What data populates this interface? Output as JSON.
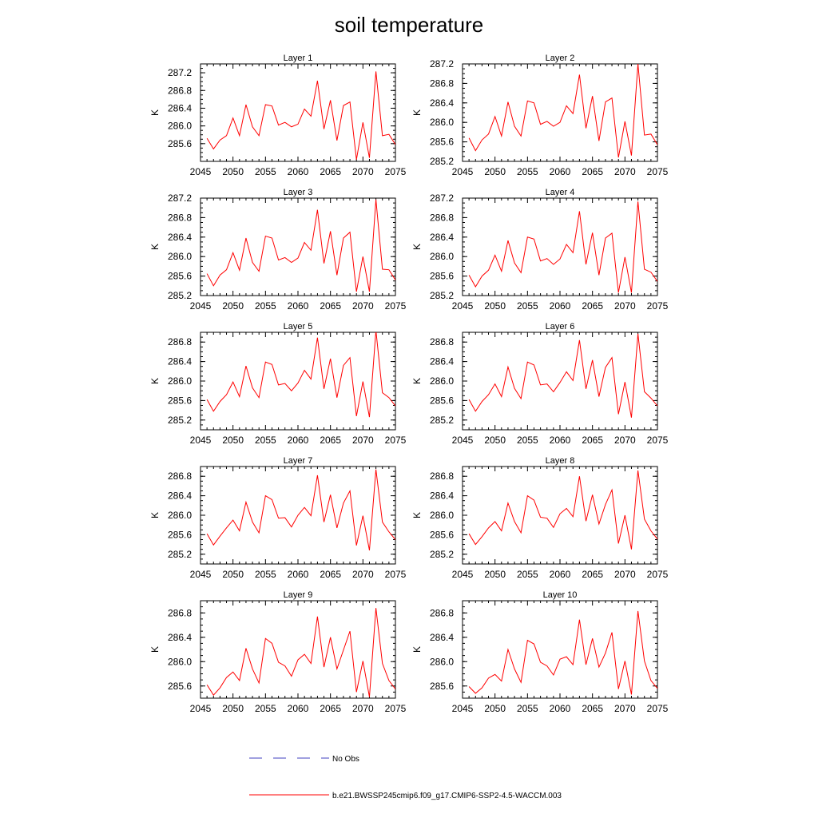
{
  "figure": {
    "title": "soil temperature",
    "legend": {
      "obs_label": "No Obs",
      "model_label": "b.e21.BWSSP245cmip6.f09_g17.CMIP6-SSP2-4.5-WACCM.003"
    }
  },
  "colors": {
    "model": "#ff0000",
    "obs": "#4040c0",
    "axis": "#000000",
    "background": "#ffffff"
  },
  "chart_data": [
    {
      "type": "line",
      "title": "Layer 1",
      "ylabel": "K",
      "xlim": [
        2045,
        2075
      ],
      "ylim": [
        285.2,
        287.4
      ],
      "xticks": [
        2045,
        2050,
        2055,
        2060,
        2065,
        2070,
        2075
      ],
      "yticks": [
        285.6,
        286.0,
        286.4,
        286.8,
        287.2
      ],
      "x": [
        2046,
        2047,
        2048,
        2049,
        2050,
        2051,
        2052,
        2053,
        2054,
        2055,
        2056,
        2057,
        2058,
        2059,
        2060,
        2061,
        2062,
        2063,
        2064,
        2065,
        2066,
        2067,
        2068,
        2069,
        2070,
        2071,
        2072,
        2073,
        2074,
        2075
      ],
      "series": [
        {
          "values": [
            285.72,
            285.48,
            285.68,
            285.78,
            286.18,
            285.78,
            286.48,
            285.98,
            285.78,
            286.48,
            286.45,
            286.02,
            286.08,
            285.98,
            286.04,
            286.38,
            286.22,
            287.02,
            285.93,
            286.58,
            285.67,
            286.46,
            286.54,
            285.24,
            286.08,
            285.28,
            287.23,
            285.78,
            285.81,
            285.58
          ]
        }
      ]
    },
    {
      "type": "line",
      "title": "Layer 2",
      "ylabel": "K",
      "xlim": [
        2045,
        2075
      ],
      "ylim": [
        285.2,
        287.2
      ],
      "xticks": [
        2045,
        2050,
        2055,
        2060,
        2065,
        2070,
        2075
      ],
      "yticks": [
        285.2,
        285.6,
        286.0,
        286.4,
        286.8,
        287.2
      ],
      "x": [
        2046,
        2047,
        2048,
        2049,
        2050,
        2051,
        2052,
        2053,
        2054,
        2055,
        2056,
        2057,
        2058,
        2059,
        2060,
        2061,
        2062,
        2063,
        2064,
        2065,
        2066,
        2067,
        2068,
        2069,
        2070,
        2071,
        2072,
        2073,
        2074,
        2075
      ],
      "series": [
        {
          "values": [
            285.68,
            285.42,
            285.64,
            285.76,
            286.12,
            285.72,
            286.42,
            285.92,
            285.72,
            286.44,
            286.4,
            285.96,
            286.02,
            285.92,
            286.0,
            286.34,
            286.18,
            286.98,
            285.88,
            286.54,
            285.62,
            286.42,
            286.5,
            285.28,
            286.02,
            285.32,
            287.2,
            285.74,
            285.76,
            285.54
          ]
        }
      ]
    },
    {
      "type": "line",
      "title": "Layer 3",
      "ylabel": "K",
      "xlim": [
        2045,
        2075
      ],
      "ylim": [
        285.2,
        287.2
      ],
      "xticks": [
        2045,
        2050,
        2055,
        2060,
        2065,
        2070,
        2075
      ],
      "yticks": [
        285.2,
        285.6,
        286.0,
        286.4,
        286.8,
        287.2
      ],
      "x": [
        2046,
        2047,
        2048,
        2049,
        2050,
        2051,
        2052,
        2053,
        2054,
        2055,
        2056,
        2057,
        2058,
        2059,
        2060,
        2061,
        2062,
        2063,
        2064,
        2065,
        2066,
        2067,
        2068,
        2069,
        2070,
        2071,
        2072,
        2073,
        2074,
        2075
      ],
      "series": [
        {
          "values": [
            285.65,
            285.4,
            285.62,
            285.73,
            286.08,
            285.72,
            286.38,
            285.88,
            285.7,
            286.42,
            286.38,
            285.93,
            285.98,
            285.88,
            285.97,
            286.29,
            286.13,
            286.96,
            285.86,
            286.52,
            285.62,
            286.38,
            286.5,
            285.28,
            286.0,
            285.28,
            287.17,
            285.74,
            285.73,
            285.52
          ]
        }
      ]
    },
    {
      "type": "line",
      "title": "Layer 4",
      "ylabel": "K",
      "xlim": [
        2045,
        2075
      ],
      "ylim": [
        285.2,
        287.2
      ],
      "xticks": [
        2045,
        2050,
        2055,
        2060,
        2065,
        2070,
        2075
      ],
      "yticks": [
        285.2,
        285.6,
        286.0,
        286.4,
        286.8,
        287.2
      ],
      "x": [
        2046,
        2047,
        2048,
        2049,
        2050,
        2051,
        2052,
        2053,
        2054,
        2055,
        2056,
        2057,
        2058,
        2059,
        2060,
        2061,
        2062,
        2063,
        2064,
        2065,
        2066,
        2067,
        2068,
        2069,
        2070,
        2071,
        2072,
        2073,
        2074,
        2075
      ],
      "series": [
        {
          "values": [
            285.62,
            285.38,
            285.6,
            285.72,
            286.03,
            285.7,
            286.33,
            285.87,
            285.67,
            286.4,
            286.36,
            285.91,
            285.96,
            285.84,
            285.95,
            286.25,
            286.08,
            286.93,
            285.84,
            286.49,
            285.62,
            286.38,
            286.48,
            285.26,
            285.99,
            285.26,
            287.13,
            285.74,
            285.68,
            285.49
          ]
        }
      ]
    },
    {
      "type": "line",
      "title": "Layer 5",
      "ylabel": "K",
      "xlim": [
        2045,
        2075
      ],
      "ylim": [
        285.0,
        287.0
      ],
      "xticks": [
        2045,
        2050,
        2055,
        2060,
        2065,
        2070,
        2075
      ],
      "yticks": [
        285.2,
        285.6,
        286.0,
        286.4,
        286.8
      ],
      "x": [
        2046,
        2047,
        2048,
        2049,
        2050,
        2051,
        2052,
        2053,
        2054,
        2055,
        2056,
        2057,
        2058,
        2059,
        2060,
        2061,
        2062,
        2063,
        2064,
        2065,
        2066,
        2067,
        2068,
        2069,
        2070,
        2071,
        2072,
        2073,
        2074,
        2075
      ],
      "series": [
        {
          "values": [
            285.62,
            285.38,
            285.58,
            285.72,
            285.98,
            285.68,
            286.31,
            285.86,
            285.66,
            286.39,
            286.34,
            285.92,
            285.95,
            285.8,
            285.96,
            286.22,
            286.04,
            286.89,
            285.84,
            286.46,
            285.66,
            286.32,
            286.48,
            285.28,
            285.99,
            285.26,
            287.04,
            285.76,
            285.66,
            285.49
          ]
        }
      ]
    },
    {
      "type": "line",
      "title": "Layer 6",
      "ylabel": "K",
      "xlim": [
        2045,
        2075
      ],
      "ylim": [
        285.0,
        287.0
      ],
      "xticks": [
        2045,
        2050,
        2055,
        2060,
        2065,
        2070,
        2075
      ],
      "yticks": [
        285.2,
        285.6,
        286.0,
        286.4,
        286.8
      ],
      "x": [
        2046,
        2047,
        2048,
        2049,
        2050,
        2051,
        2052,
        2053,
        2054,
        2055,
        2056,
        2057,
        2058,
        2059,
        2060,
        2061,
        2062,
        2063,
        2064,
        2065,
        2066,
        2067,
        2068,
        2069,
        2070,
        2071,
        2072,
        2073,
        2074,
        2075
      ],
      "series": [
        {
          "values": [
            285.62,
            285.38,
            285.58,
            285.72,
            285.94,
            285.68,
            286.29,
            285.85,
            285.64,
            286.39,
            286.33,
            285.92,
            285.94,
            285.78,
            285.97,
            286.19,
            286.01,
            286.84,
            285.84,
            286.43,
            285.68,
            286.28,
            286.48,
            285.32,
            285.98,
            285.25,
            286.97,
            285.78,
            285.65,
            285.49
          ]
        }
      ]
    },
    {
      "type": "line",
      "title": "Layer 7",
      "ylabel": "K",
      "xlim": [
        2045,
        2075
      ],
      "ylim": [
        285.0,
        287.0
      ],
      "xticks": [
        2045,
        2050,
        2055,
        2060,
        2065,
        2070,
        2075
      ],
      "yticks": [
        285.2,
        285.6,
        286.0,
        286.4,
        286.8
      ],
      "x": [
        2046,
        2047,
        2048,
        2049,
        2050,
        2051,
        2052,
        2053,
        2054,
        2055,
        2056,
        2057,
        2058,
        2059,
        2060,
        2061,
        2062,
        2063,
        2064,
        2065,
        2066,
        2067,
        2068,
        2069,
        2070,
        2071,
        2072,
        2073,
        2074,
        2075
      ],
      "series": [
        {
          "values": [
            285.62,
            285.39,
            285.57,
            285.74,
            285.9,
            285.68,
            286.27,
            285.86,
            285.64,
            286.4,
            286.32,
            285.94,
            285.95,
            285.76,
            286.0,
            286.16,
            285.99,
            286.82,
            285.86,
            286.42,
            285.74,
            286.25,
            286.5,
            285.38,
            285.99,
            285.28,
            286.94,
            285.86,
            285.66,
            285.5
          ]
        }
      ]
    },
    {
      "type": "line",
      "title": "Layer 8",
      "ylabel": "K",
      "xlim": [
        2045,
        2075
      ],
      "ylim": [
        285.0,
        287.0
      ],
      "xticks": [
        2045,
        2050,
        2055,
        2060,
        2065,
        2070,
        2075
      ],
      "yticks": [
        285.2,
        285.6,
        286.0,
        286.4,
        286.8
      ],
      "x": [
        2046,
        2047,
        2048,
        2049,
        2050,
        2051,
        2052,
        2053,
        2054,
        2055,
        2056,
        2057,
        2058,
        2059,
        2060,
        2061,
        2062,
        2063,
        2064,
        2065,
        2066,
        2067,
        2068,
        2069,
        2070,
        2071,
        2072,
        2073,
        2074,
        2075
      ],
      "series": [
        {
          "values": [
            285.62,
            285.4,
            285.56,
            285.74,
            285.87,
            285.68,
            286.25,
            285.87,
            285.64,
            286.4,
            286.31,
            285.96,
            285.94,
            285.75,
            286.03,
            286.14,
            285.97,
            286.8,
            285.88,
            286.42,
            285.82,
            286.22,
            286.52,
            285.42,
            286.0,
            285.3,
            286.92,
            285.92,
            285.68,
            285.51
          ]
        }
      ]
    },
    {
      "type": "line",
      "title": "Layer 9",
      "ylabel": "K",
      "xlim": [
        2045,
        2075
      ],
      "ylim": [
        285.4,
        287.0
      ],
      "xticks": [
        2045,
        2050,
        2055,
        2060,
        2065,
        2070,
        2075
      ],
      "yticks": [
        285.6,
        286.0,
        286.4,
        286.8
      ],
      "x": [
        2046,
        2047,
        2048,
        2049,
        2050,
        2051,
        2052,
        2053,
        2054,
        2055,
        2056,
        2057,
        2058,
        2059,
        2060,
        2061,
        2062,
        2063,
        2064,
        2065,
        2066,
        2067,
        2068,
        2069,
        2070,
        2071,
        2072,
        2073,
        2074,
        2075
      ],
      "series": [
        {
          "values": [
            285.62,
            285.45,
            285.57,
            285.74,
            285.83,
            285.69,
            286.22,
            285.88,
            285.65,
            286.38,
            286.3,
            285.99,
            285.93,
            285.76,
            286.03,
            286.12,
            285.97,
            286.74,
            285.91,
            286.4,
            285.88,
            286.19,
            286.5,
            285.5,
            286.01,
            285.42,
            286.88,
            285.97,
            285.69,
            285.55
          ]
        }
      ]
    },
    {
      "type": "line",
      "title": "Layer 10",
      "ylabel": "K",
      "xlim": [
        2045,
        2075
      ],
      "ylim": [
        285.4,
        287.0
      ],
      "xticks": [
        2045,
        2050,
        2055,
        2060,
        2065,
        2070,
        2075
      ],
      "yticks": [
        285.6,
        286.0,
        286.4,
        286.8
      ],
      "x": [
        2046,
        2047,
        2048,
        2049,
        2050,
        2051,
        2052,
        2053,
        2054,
        2055,
        2056,
        2057,
        2058,
        2059,
        2060,
        2061,
        2062,
        2063,
        2064,
        2065,
        2066,
        2067,
        2068,
        2069,
        2070,
        2071,
        2072,
        2073,
        2074,
        2075
      ],
      "series": [
        {
          "values": [
            285.59,
            285.48,
            285.57,
            285.73,
            285.79,
            285.68,
            286.2,
            285.88,
            285.66,
            286.35,
            286.29,
            285.99,
            285.93,
            285.78,
            286.04,
            286.08,
            285.95,
            286.69,
            285.95,
            286.38,
            285.91,
            286.14,
            286.48,
            285.55,
            286.01,
            285.46,
            286.83,
            286.01,
            285.69,
            285.56
          ]
        }
      ]
    }
  ]
}
